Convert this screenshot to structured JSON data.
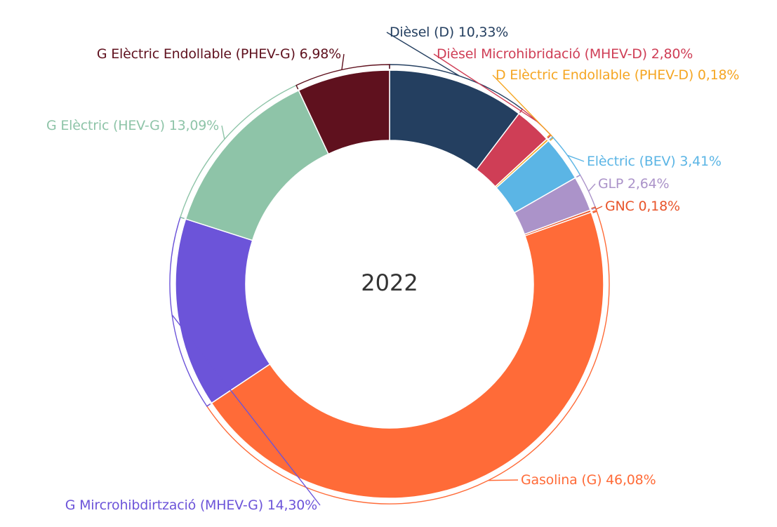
{
  "chart_data": {
    "type": "pie",
    "hole": true,
    "center_text": "2022",
    "slices": [
      {
        "label": "Dièsel (D)",
        "value": 10.33,
        "value_text": "10,33%",
        "color": "#243f60"
      },
      {
        "label": "Dièsel Microhibridació (MHEV-D)",
        "value": 2.8,
        "value_text": "2,80%",
        "color": "#cf3e56"
      },
      {
        "label": "D Elèctric Endollable (PHEV-D)",
        "value": 0.18,
        "value_text": "0,18%",
        "color": "#f5a623"
      },
      {
        "label": "Elèctric (BEV)",
        "value": 3.41,
        "value_text": "3,41%",
        "color": "#5bb5e5"
      },
      {
        "label": "GLP",
        "value": 2.64,
        "value_text": "2,64%",
        "color": "#ab93c9"
      },
      {
        "label": "GNC",
        "value": 0.18,
        "value_text": "0,18%",
        "color": "#e8542a"
      },
      {
        "label": "Gasolina (G)",
        "value": 46.08,
        "value_text": "46,08%",
        "color": "#ff6b38"
      },
      {
        "label": "G Mircrohibdirtzació (MHEV-G)",
        "value": 14.3,
        "value_text": "14,30%",
        "color": "#6c54d9"
      },
      {
        "label": "G Elèctric (HEV-G)",
        "value": 13.09,
        "value_text": "13,09%",
        "color": "#8ec4a8"
      },
      {
        "label": "G Elèctric Endollable (PHEV-G)",
        "value": 6.98,
        "value_text": "6,98%",
        "color": "#5f111e"
      }
    ]
  }
}
